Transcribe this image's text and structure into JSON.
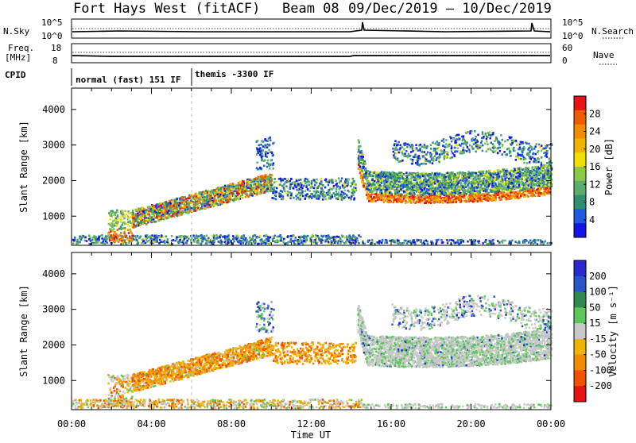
{
  "header": {
    "radar": "Fort Hays West (fitACF)",
    "beam": "Beam 08",
    "date_range": "09/Dec/2019 – 10/Dec/2019"
  },
  "small_panels": {
    "nsky_label": "N.Sky",
    "nsky_ticks": [
      "10^5",
      "10^0"
    ],
    "nsearch_label": "N.Search",
    "nsearch_ticks": [
      "10^5",
      "10^0"
    ],
    "freq_label_1": "Freq.",
    "freq_label_2": "[MHz]",
    "freq_ticks": [
      "18",
      "8"
    ],
    "nave_label": "Nave",
    "nave_ticks": [
      "60",
      "0"
    ],
    "cpid_label": "CPID",
    "cpid_modes": [
      {
        "label": "normal (fast) 151 IF",
        "start_hour": 0
      },
      {
        "label": "themis -3300 IF",
        "start_hour": 6
      }
    ]
  },
  "chart_data": [
    {
      "type": "heatmap",
      "name": "Power",
      "xlabel": "Time UT",
      "ylabel": "Slant Range [km]",
      "x_ticks": [
        "00:00",
        "04:00",
        "08:00",
        "12:00",
        "16:00",
        "20:00",
        "00:00"
      ],
      "x_range_hours": [
        0,
        24
      ],
      "ylim": [
        180,
        4600
      ],
      "y_ticks": [
        1000,
        2000,
        3000,
        4000
      ],
      "colorbar_label": "Power [dB]",
      "colorbar_ticks": [
        4,
        8,
        12,
        16,
        20,
        24,
        28
      ],
      "colorbar_colors": [
        "#1414e6",
        "#1e5ae0",
        "#2f8f73",
        "#5aae6a",
        "#8cc84a",
        "#f0e000",
        "#f0b400",
        "#f08c00",
        "#f05a00",
        "#e61414"
      ]
    },
    {
      "type": "heatmap",
      "name": "Velocity",
      "xlabel": "Time UT",
      "ylabel": "Slant Range [km]",
      "x_ticks": [
        "00:00",
        "04:00",
        "08:00",
        "12:00",
        "16:00",
        "20:00",
        "00:00"
      ],
      "x_range_hours": [
        0,
        24
      ],
      "ylim": [
        180,
        4600
      ],
      "y_ticks": [
        1000,
        2000,
        3000,
        4000
      ],
      "colorbar_label": "Velocity [m s⁻¹]",
      "colorbar_ticks": [
        200,
        100,
        50,
        15,
        -15,
        -50,
        -100,
        -200
      ],
      "colorbar_colors": [
        "#2a2ad0",
        "#2a55c8",
        "#2e8a50",
        "#5cc85c",
        "#c8c8c8",
        "#f0b400",
        "#f08c00",
        "#f05000",
        "#e61414"
      ]
    }
  ]
}
